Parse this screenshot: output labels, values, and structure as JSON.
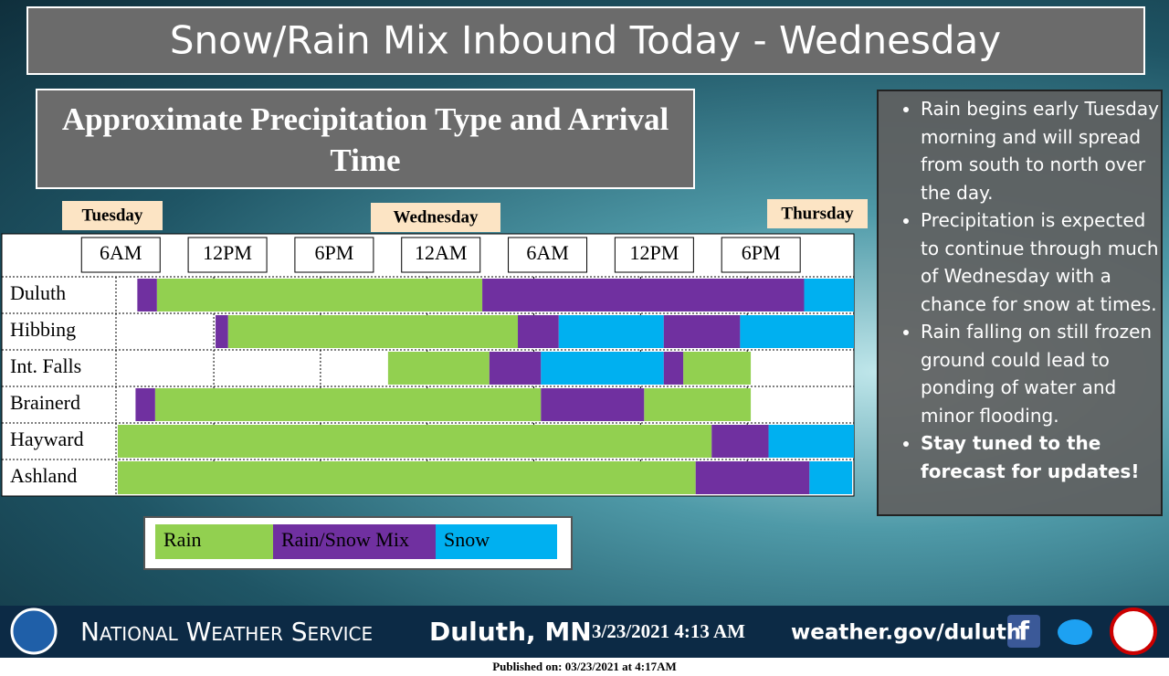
{
  "chart_data": {
    "type": "timeline",
    "title": "Snow/Rain Mix Inbound Today - Wednesday",
    "subtitle": "Approximate Precipitation Type and Arrival Time",
    "days": [
      "Tuesday",
      "Wednesday",
      "Thursday"
    ],
    "categories": [
      "Duluth",
      "Hibbing",
      "Int. Falls",
      "Brainerd",
      "Hayward",
      "Ashland"
    ],
    "xlim": [
      6.5,
      48
    ],
    "xticks": [
      {
        "value": 6,
        "label": "6AM"
      },
      {
        "value": 12,
        "label": "12PM"
      },
      {
        "value": 18,
        "label": "6PM"
      },
      {
        "value": 24,
        "label": "12AM"
      },
      {
        "value": 30,
        "label": "6AM"
      },
      {
        "value": 36,
        "label": "12PM"
      },
      {
        "value": 42,
        "label": "6PM"
      }
    ],
    "series": [
      {
        "name": "Rain",
        "color": "#92d050",
        "spans": [
          [
            [
              8.8,
              27.1
            ]
          ],
          [
            [
              12.8,
              29.1
            ]
          ],
          [
            [
              21.8,
              27.5
            ],
            [
              38.4,
              42.2
            ]
          ],
          [
            [
              8.7,
              30.4
            ],
            [
              36.2,
              42.2
            ]
          ],
          [
            [
              6.6,
              40
            ]
          ],
          [
            [
              6.6,
              39.1
            ]
          ]
        ]
      },
      {
        "name": "Rain/Snow Mix",
        "color": "#7030a0",
        "spans": [
          [
            [
              7.7,
              8.8
            ],
            [
              27.1,
              45.2
            ]
          ],
          [
            [
              12.1,
              12.8
            ],
            [
              29.1,
              31.4
            ],
            [
              37.3,
              41.6
            ]
          ],
          [
            [
              27.5,
              30.4
            ],
            [
              37.3,
              38.4
            ]
          ],
          [
            [
              7.6,
              8.7
            ],
            [
              30.4,
              36.2
            ]
          ],
          [
            [
              40,
              43.2
            ]
          ],
          [
            [
              39.1,
              45.5
            ]
          ]
        ]
      },
      {
        "name": "Snow",
        "color": "#00b0f0",
        "spans": [
          [
            [
              45.2,
              48
            ]
          ],
          [
            [
              31.4,
              37.3
            ],
            [
              41.6,
              48
            ]
          ],
          [
            [
              30.4,
              37.3
            ]
          ],
          [],
          [
            [
              43.2,
              48
            ]
          ],
          [
            [
              45.5,
              47.9
            ]
          ]
        ]
      }
    ]
  },
  "bullets": [
    "Rain begins early Tuesday morning  and will spread from south to north over the day.",
    "Precipitation is expected to continue through much of Wednesday with a chance for snow at times.",
    "Rain falling on still frozen ground could lead to ponding of water and minor flooding.",
    "Stay tuned to the forecast for updates!"
  ],
  "footer": {
    "agency": "National Weather Service",
    "office": "Duluth, MN",
    "timestamp": "3/23/2021 4:13 AM",
    "url": "weather.gov/duluth",
    "published": "Published on: 03/23/2021 at 4:17AM"
  }
}
